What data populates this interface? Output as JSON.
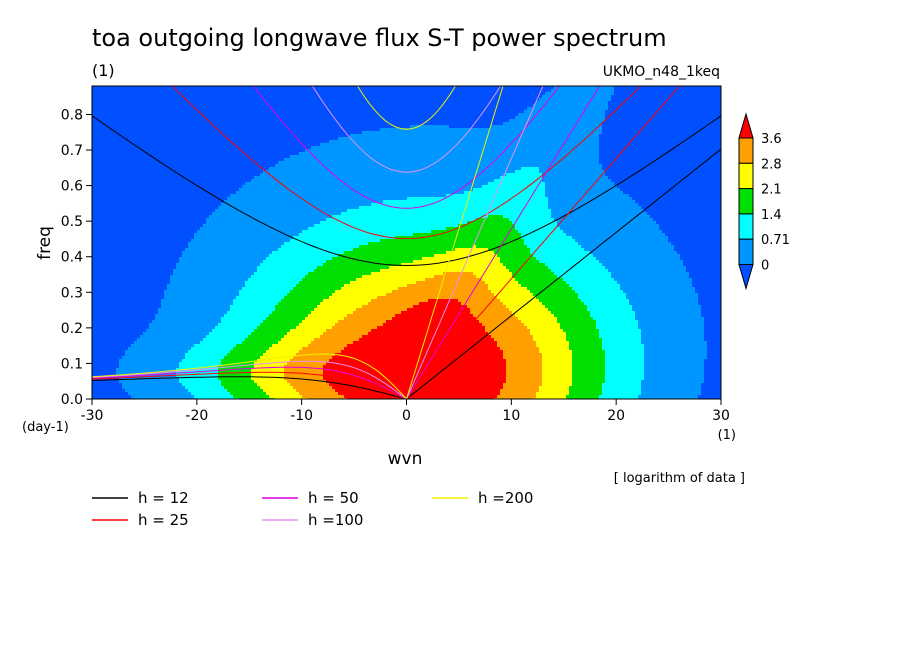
{
  "chart_data": {
    "type": "heatmap",
    "title": "toa outgoing longwave flux S-T power spectrum",
    "subtitle_left": "(1)",
    "subtitle_right": "UKMO_n48_1keq",
    "xlabel": "wvn",
    "ylabel": "freq",
    "y_unit": "(day-1)",
    "x_unit": "(1)",
    "xlim": [
      -30,
      30
    ],
    "ylim": [
      0,
      0.88
    ],
    "x_ticks": [
      -30,
      -20,
      -10,
      0,
      10,
      20,
      30
    ],
    "y_ticks": [
      0.0,
      0.1,
      0.2,
      0.3,
      0.4,
      0.5,
      0.6,
      0.7,
      0.8
    ],
    "x_tick_labels": [
      "-30",
      "-20",
      "-10",
      "0",
      "10",
      "20",
      "30"
    ],
    "y_tick_labels": [
      "0.0",
      "0.1",
      "0.2",
      "0.3",
      "0.4",
      "0.5",
      "0.6",
      "0.7",
      "0.8"
    ],
    "colorbar_levels": [
      "3.6",
      "2.8",
      "2.1",
      "1.4",
      "0.71",
      "0"
    ],
    "colorbar_colors": [
      "#0050ff",
      "#0096ff",
      "#00ffff",
      "#00e000",
      "#ffff00",
      "#ffa000",
      "#ff0000"
    ],
    "note": "[ logarithm of data ]",
    "dispersion_curves": [
      {
        "label": "h = 12",
        "color": "#000000"
      },
      {
        "label": "h = 25",
        "color": "#ff0000"
      },
      {
        "label": "h = 50",
        "color": "#e000e0"
      },
      {
        "label": "h =100",
        "color": "#e890f0"
      },
      {
        "label": "h =200",
        "color": "#f0f000"
      }
    ],
    "grid": false
  }
}
